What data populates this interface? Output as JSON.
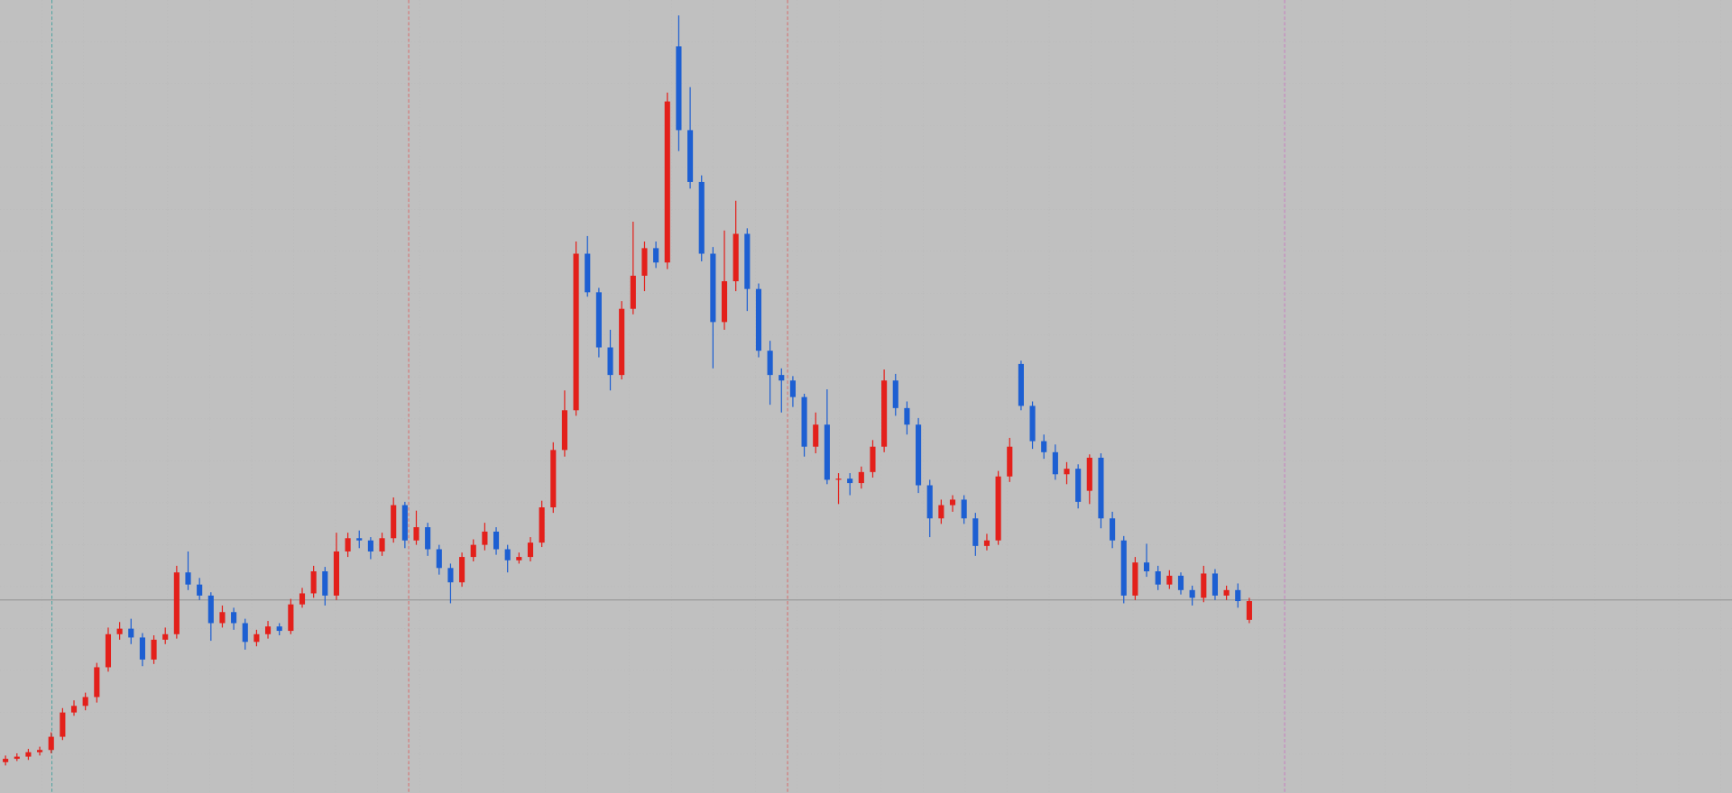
{
  "chart_data": {
    "type": "candlestick",
    "ylim": [
      0,
      719
    ],
    "up_color": "#e3201b",
    "down_color": "#1d5fd2",
    "candles": [
      [
        28,
        34,
        25,
        31
      ],
      [
        31,
        36,
        29,
        33
      ],
      [
        33,
        40,
        30,
        37
      ],
      [
        37,
        42,
        34,
        39
      ],
      [
        39,
        55,
        36,
        51
      ],
      [
        51,
        77,
        48,
        73
      ],
      [
        73,
        84,
        70,
        79
      ],
      [
        79,
        91,
        75,
        87
      ],
      [
        87,
        118,
        82,
        114
      ],
      [
        114,
        150,
        110,
        144
      ],
      [
        144,
        155,
        139,
        149
      ],
      [
        149,
        158,
        135,
        141
      ],
      [
        141,
        145,
        115,
        121
      ],
      [
        121,
        143,
        117,
        139
      ],
      [
        139,
        150,
        135,
        144
      ],
      [
        144,
        206,
        140,
        200
      ],
      [
        200,
        219,
        184,
        189
      ],
      [
        189,
        195,
        175,
        179
      ],
      [
        179,
        182,
        138,
        154
      ],
      [
        154,
        170,
        150,
        164
      ],
      [
        164,
        168,
        148,
        154
      ],
      [
        154,
        158,
        130,
        137
      ],
      [
        137,
        148,
        133,
        144
      ],
      [
        144,
        156,
        140,
        151
      ],
      [
        151,
        154,
        143,
        147
      ],
      [
        147,
        176,
        144,
        171
      ],
      [
        171,
        186,
        168,
        181
      ],
      [
        181,
        206,
        177,
        201
      ],
      [
        201,
        205,
        170,
        179
      ],
      [
        179,
        236,
        175,
        219
      ],
      [
        219,
        236,
        214,
        231
      ],
      [
        231,
        238,
        222,
        229
      ],
      [
        229,
        232,
        212,
        219
      ],
      [
        219,
        236,
        215,
        231
      ],
      [
        231,
        268,
        227,
        261
      ],
      [
        261,
        264,
        222,
        229
      ],
      [
        229,
        256,
        225,
        241
      ],
      [
        241,
        245,
        215,
        221
      ],
      [
        221,
        225,
        198,
        204
      ],
      [
        204,
        208,
        172,
        191
      ],
      [
        191,
        218,
        187,
        214
      ],
      [
        214,
        230,
        210,
        225
      ],
      [
        225,
        245,
        220,
        237
      ],
      [
        237,
        241,
        216,
        221
      ],
      [
        221,
        225,
        200,
        211
      ],
      [
        211,
        218,
        208,
        214
      ],
      [
        214,
        232,
        210,
        227
      ],
      [
        227,
        265,
        223,
        259
      ],
      [
        259,
        318,
        254,
        311
      ],
      [
        311,
        365,
        305,
        347
      ],
      [
        347,
        500,
        342,
        489
      ],
      [
        489,
        505,
        450,
        454
      ],
      [
        454,
        458,
        395,
        404
      ],
      [
        404,
        420,
        365,
        379
      ],
      [
        379,
        446,
        375,
        439
      ],
      [
        439,
        518,
        434,
        469
      ],
      [
        469,
        500,
        455,
        494
      ],
      [
        494,
        500,
        476,
        481
      ],
      [
        481,
        635,
        475,
        627
      ],
      [
        677,
        705,
        582,
        601
      ],
      [
        601,
        640,
        548,
        554
      ],
      [
        554,
        560,
        482,
        489
      ],
      [
        489,
        495,
        385,
        427
      ],
      [
        427,
        510,
        420,
        464
      ],
      [
        464,
        537,
        455,
        507
      ],
      [
        507,
        512,
        437,
        457
      ],
      [
        457,
        462,
        395,
        401
      ],
      [
        401,
        410,
        352,
        379
      ],
      [
        379,
        385,
        345,
        374
      ],
      [
        374,
        378,
        350,
        359
      ],
      [
        359,
        362,
        305,
        314
      ],
      [
        314,
        345,
        308,
        334
      ],
      [
        334,
        366,
        280,
        284
      ],
      [
        284,
        290,
        262,
        285
      ],
      [
        285,
        290,
        270,
        281
      ],
      [
        281,
        296,
        276,
        291
      ],
      [
        291,
        320,
        286,
        314
      ],
      [
        314,
        384,
        309,
        374
      ],
      [
        374,
        380,
        342,
        349
      ],
      [
        349,
        355,
        325,
        334
      ],
      [
        334,
        340,
        272,
        279
      ],
      [
        279,
        284,
        232,
        249
      ],
      [
        249,
        266,
        244,
        261
      ],
      [
        261,
        270,
        255,
        266
      ],
      [
        266,
        270,
        244,
        249
      ],
      [
        249,
        254,
        215,
        224
      ],
      [
        224,
        235,
        220,
        229
      ],
      [
        229,
        292,
        225,
        287
      ],
      [
        287,
        322,
        282,
        314
      ],
      [
        389,
        392,
        347,
        351
      ],
      [
        351,
        355,
        312,
        319
      ],
      [
        319,
        325,
        303,
        309
      ],
      [
        309,
        316,
        284,
        289
      ],
      [
        289,
        300,
        280,
        294
      ],
      [
        294,
        298,
        258,
        264
      ],
      [
        274,
        307,
        262,
        304
      ],
      [
        304,
        308,
        240,
        249
      ],
      [
        249,
        255,
        222,
        229
      ],
      [
        229,
        233,
        172,
        179
      ],
      [
        179,
        214,
        175,
        209
      ],
      [
        209,
        226,
        196,
        201
      ],
      [
        201,
        206,
        184,
        189
      ],
      [
        189,
        202,
        185,
        197
      ],
      [
        197,
        200,
        180,
        184
      ],
      [
        184,
        188,
        170,
        177
      ],
      [
        177,
        206,
        173,
        199
      ],
      [
        199,
        203,
        175,
        179
      ],
      [
        179,
        188,
        175,
        184
      ],
      [
        184,
        190,
        168,
        174
      ],
      [
        157,
        177,
        154,
        174
      ]
    ]
  }
}
